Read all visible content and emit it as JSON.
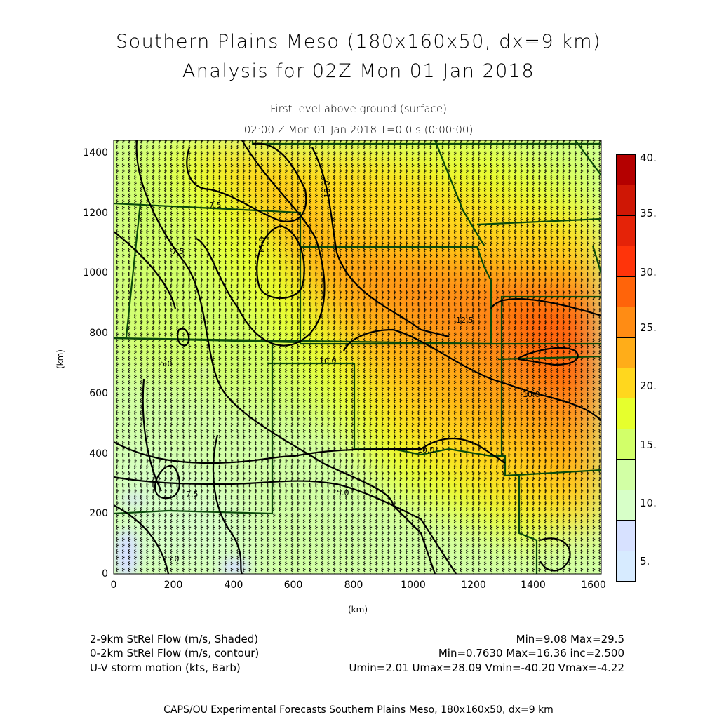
{
  "titles": {
    "main": "Southern Plains Meso (180x160x50, dx=9 km)",
    "analysis": "Analysis for 02Z Mon 01 Jan 2018",
    "level": "First level above ground (surface)",
    "time": "02:00 Z Mon 01 Jan 2018    T=0.0 s (0:00:00)"
  },
  "axes": {
    "xlabel": "(km)",
    "ylabel": "(km)",
    "xticks": [
      "0",
      "200",
      "400",
      "600",
      "800",
      "1000",
      "1200",
      "1400",
      "1600"
    ],
    "yticks": [
      "0",
      "200",
      "400",
      "600",
      "800",
      "1000",
      "1200",
      "1400"
    ],
    "xrange_km": [
      0,
      1625
    ],
    "yrange_km": [
      0,
      1440
    ]
  },
  "colorbar": {
    "labels": [
      "40.",
      "35.",
      "30.",
      "25.",
      "20.",
      "15.",
      "10.",
      "5."
    ],
    "label_values": [
      40,
      35,
      30,
      25,
      20,
      15,
      10,
      5
    ],
    "bins": [
      5,
      7.5,
      10,
      12.5,
      15,
      17.5,
      20,
      22.5,
      25,
      27.5,
      30,
      32.5,
      35,
      37.5,
      40
    ],
    "colors": [
      "#d7ebff",
      "#d7e1ff",
      "#d7ffc8",
      "#d2ffa5",
      "#d2ff69",
      "#e6ff2d",
      "#ffd71e",
      "#ffad19",
      "#ff8c14",
      "#ff640a",
      "#ff340a",
      "#e52308",
      "#cf1705",
      "#b40000"
    ]
  },
  "contour_labels": [
    "7.5",
    "7.5",
    "15.0",
    "10.0",
    "12.5",
    "10.0",
    "10.0",
    "10.0",
    "5.0",
    "5.0",
    "7.5",
    "5.0"
  ],
  "legend": {
    "line1_left": "2-9km StRel Flow (m/s, Shaded)",
    "line1_right": "Min=9.08 Max=29.5",
    "line2_left": "0-2km StRel Flow (m/s, contour)",
    "line2_right": "Min=0.7630 Max=16.36 inc=2.500",
    "line3_left": "U-V storm motion (kts, Barb)",
    "line3_right": "Umin=2.01 Umax=28.09 Vmin=-40.20 Vmax=-4.22"
  },
  "footer": "CAPS/OU Experimental Forecasts  Southern Plains Meso, 180x160x50, dx=9 km"
}
